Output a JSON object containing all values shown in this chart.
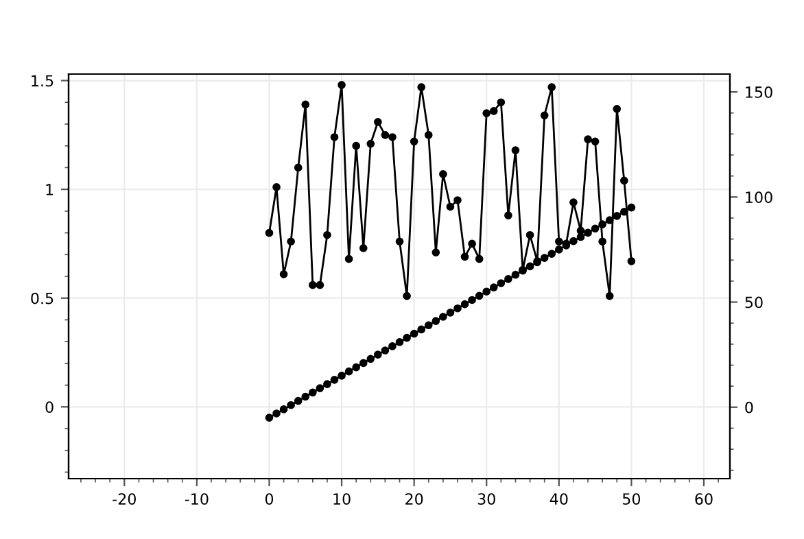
{
  "chart_data": {
    "type": "line",
    "x": [
      0,
      1,
      2,
      3,
      4,
      5,
      6,
      7,
      8,
      9,
      10,
      11,
      12,
      13,
      14,
      15,
      16,
      17,
      18,
      19,
      20,
      21,
      22,
      23,
      24,
      25,
      26,
      27,
      28,
      29,
      30,
      31,
      32,
      33,
      34,
      35,
      36,
      37,
      38,
      39,
      40,
      41,
      42,
      43,
      44,
      45,
      46,
      47,
      48,
      49,
      50
    ],
    "series": [
      {
        "color": "#000000",
        "values": [
          0.8,
          1.01,
          0.61,
          0.76,
          1.1,
          1.39,
          0.56,
          0.56,
          0.79,
          1.24,
          1.48,
          0.68,
          1.2,
          0.73,
          1.21,
          1.31,
          1.25,
          1.24,
          0.76,
          0.51,
          1.22,
          1.47,
          1.25,
          0.71,
          1.07,
          0.92,
          0.95,
          0.69,
          0.75,
          0.68,
          1.35,
          1.36,
          1.4,
          0.88,
          1.18,
          0.63,
          0.79,
          0.67,
          1.34,
          1.47,
          0.76,
          0.75,
          0.94,
          0.81,
          1.23,
          1.22,
          0.76,
          0.51,
          1.37,
          1.04,
          0.67
        ]
      },
      {
        "color": "#000000",
        "axis": "y2",
        "values": [
          -5,
          -3,
          -1,
          1,
          3,
          5,
          7,
          9,
          11,
          13,
          15,
          17,
          19,
          21,
          23,
          25,
          27,
          29,
          31,
          33,
          35,
          37,
          39,
          41,
          43,
          45,
          47,
          49,
          51,
          53,
          55,
          57,
          59,
          61,
          63,
          65,
          67,
          69,
          71,
          73,
          75,
          77,
          79,
          81,
          83,
          85,
          87,
          89,
          91,
          93,
          95
        ]
      }
    ],
    "xlim": [
      -27.7,
      63.6
    ],
    "xticks": [
      {
        "value": -26,
        "label": null
      },
      {
        "value": -24,
        "label": null
      },
      {
        "value": -22,
        "label": null
      },
      -20,
      {
        "value": -18,
        "label": null
      },
      {
        "value": -16,
        "label": null
      },
      {
        "value": -14,
        "label": null
      },
      {
        "value": -12,
        "label": null
      },
      -10,
      {
        "value": -8,
        "label": null
      },
      {
        "value": -6,
        "label": null
      },
      {
        "value": -4,
        "label": null
      },
      {
        "value": -2,
        "label": null
      },
      0,
      {
        "value": 2,
        "label": null
      },
      {
        "value": 4,
        "label": null
      },
      {
        "value": 6,
        "label": null
      },
      {
        "value": 8,
        "label": null
      },
      10,
      {
        "value": 12,
        "label": null
      },
      {
        "value": 14,
        "label": null
      },
      {
        "value": 16,
        "label": null
      },
      {
        "value": 18,
        "label": null
      },
      20,
      {
        "value": 22,
        "label": null
      },
      {
        "value": 24,
        "label": null
      },
      {
        "value": 26,
        "label": null
      },
      {
        "value": 28,
        "label": null
      },
      30,
      {
        "value": 32,
        "label": null
      },
      {
        "value": 34,
        "label": null
      },
      {
        "value": 36,
        "label": null
      },
      {
        "value": 38,
        "label": null
      },
      40,
      {
        "value": 42,
        "label": null
      },
      {
        "value": 44,
        "label": null
      },
      {
        "value": 46,
        "label": null
      },
      {
        "value": 48,
        "label": null
      },
      50,
      {
        "value": 52,
        "label": null
      },
      {
        "value": 54,
        "label": null
      },
      {
        "value": 56,
        "label": null
      },
      {
        "value": 58,
        "label": null
      },
      60,
      {
        "value": 62,
        "label": null
      }
    ],
    "ylim": [
      -0.33,
      1.53
    ],
    "yticks": [
      {
        "value": -0.3,
        "label": null
      },
      {
        "value": -0.2,
        "label": null
      },
      {
        "value": -0.1,
        "label": null
      },
      0,
      {
        "value": 0.1,
        "label": null
      },
      {
        "value": 0.2,
        "label": null
      },
      {
        "value": 0.3,
        "label": null
      },
      {
        "value": 0.4,
        "label": null
      },
      0.5,
      {
        "value": 0.6,
        "label": null
      },
      {
        "value": 0.7,
        "label": null
      },
      {
        "value": 0.8,
        "label": null
      },
      {
        "value": 0.9,
        "label": null
      },
      1,
      {
        "value": 1.1,
        "label": null
      },
      {
        "value": 1.2,
        "label": null
      },
      {
        "value": 1.3,
        "label": null
      },
      {
        "value": 1.4,
        "label": null
      },
      1.5
    ],
    "y2lim": [
      -34,
      158.5
    ],
    "y2ticks": [
      {
        "value": -30,
        "label": null
      },
      {
        "value": -20,
        "label": null
      },
      {
        "value": -10,
        "label": null
      },
      0,
      {
        "value": 10,
        "label": null
      },
      {
        "value": 20,
        "label": null
      },
      {
        "value": 30,
        "label": null
      },
      {
        "value": 40,
        "label": null
      },
      50,
      {
        "value": 60,
        "label": null
      },
      {
        "value": 70,
        "label": null
      },
      {
        "value": 80,
        "label": null
      },
      {
        "value": 90,
        "label": null
      },
      100,
      {
        "value": 110,
        "label": null
      },
      {
        "value": 120,
        "label": null
      },
      {
        "value": 130,
        "label": null
      },
      {
        "value": 140,
        "label": null
      },
      150
    ],
    "grid": true,
    "marker": "circle",
    "line_style": "solid"
  }
}
